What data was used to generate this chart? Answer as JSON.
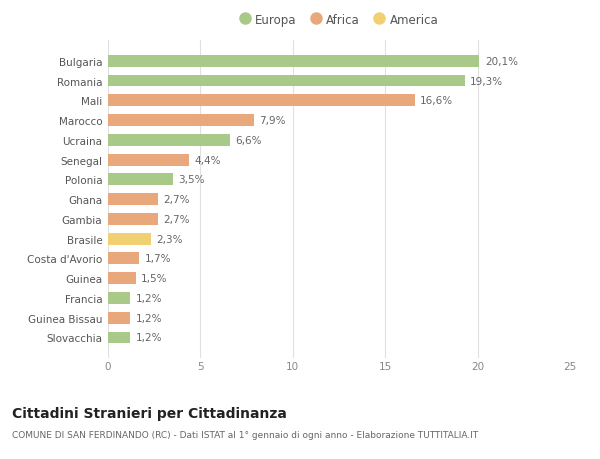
{
  "categories": [
    "Slovacchia",
    "Guinea Bissau",
    "Francia",
    "Guinea",
    "Costa d'Avorio",
    "Brasile",
    "Gambia",
    "Ghana",
    "Polonia",
    "Senegal",
    "Ucraina",
    "Marocco",
    "Mali",
    "Romania",
    "Bulgaria"
  ],
  "values": [
    1.2,
    1.2,
    1.2,
    1.5,
    1.7,
    2.3,
    2.7,
    2.7,
    3.5,
    4.4,
    6.6,
    7.9,
    16.6,
    19.3,
    20.1
  ],
  "labels": [
    "1,2%",
    "1,2%",
    "1,2%",
    "1,5%",
    "1,7%",
    "2,3%",
    "2,7%",
    "2,7%",
    "3,5%",
    "4,4%",
    "6,6%",
    "7,9%",
    "16,6%",
    "19,3%",
    "20,1%"
  ],
  "colors": [
    "#a8c987",
    "#e8a87c",
    "#a8c987",
    "#e8a87c",
    "#e8a87c",
    "#f0d070",
    "#e8a87c",
    "#e8a87c",
    "#a8c987",
    "#e8a87c",
    "#a8c987",
    "#e8a87c",
    "#e8a87c",
    "#a8c987",
    "#a8c987"
  ],
  "legend": [
    {
      "label": "Europa",
      "color": "#a8c987"
    },
    {
      "label": "Africa",
      "color": "#e8a87c"
    },
    {
      "label": "America",
      "color": "#f0d070"
    }
  ],
  "title": "Cittadini Stranieri per Cittadinanza",
  "subtitle": "COMUNE DI SAN FERDINANDO (RC) - Dati ISTAT al 1° gennaio di ogni anno - Elaborazione TUTTITALIA.IT",
  "xlim": [
    0,
    25
  ],
  "xticks": [
    0,
    5,
    10,
    15,
    20,
    25
  ],
  "bar_height": 0.6,
  "bg_color": "#ffffff",
  "grid_color": "#e0e0e0",
  "label_fontsize": 7.5,
  "tick_fontsize": 7.5,
  "title_fontsize": 10,
  "subtitle_fontsize": 6.5,
  "legend_fontsize": 8.5
}
